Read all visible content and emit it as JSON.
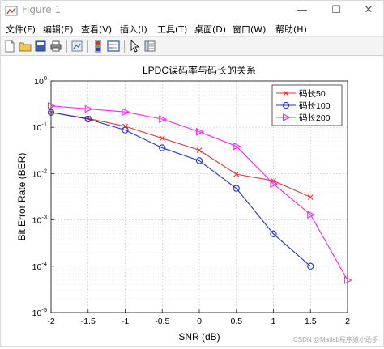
{
  "window": {
    "title": "Figure 1",
    "controls": {
      "minimize": "—",
      "maximize": "☐",
      "close": "✕"
    }
  },
  "menu": {
    "items": [
      {
        "label": "文件(F)"
      },
      {
        "label": "编辑(E)"
      },
      {
        "label": "查看(V)"
      },
      {
        "label": "插入(I)"
      },
      {
        "label": "工具(T)"
      },
      {
        "label": "桌面(D)"
      },
      {
        "label": "窗口(W)"
      },
      {
        "label": "帮助(H)"
      }
    ]
  },
  "toolbar": {
    "icons": [
      "new-file-icon",
      "open-folder-icon",
      "save-icon",
      "print-icon",
      "link-plot-icon",
      "colorbar-icon",
      "legend-icon",
      "edit-plot-icon",
      "property-inspector-icon"
    ]
  },
  "watermark": "CSDN @Matlab程序猿小助手",
  "colors": {
    "red": "#e03030",
    "blue": "#2236c8",
    "magenta": "#ff20ff"
  },
  "chart_data": {
    "type": "line",
    "title": "LPDC误码率与码长的关系",
    "xlabel": "SNR (dB)",
    "ylabel": "Bit Error Rate (BER)",
    "xlim": [
      -2,
      2
    ],
    "ylim": [
      1e-05,
      1
    ],
    "yscale": "log",
    "grid": true,
    "legend_position": "top-right",
    "x_ticks": [
      "-2",
      "-1.5",
      "-1",
      "-0.5",
      "0",
      "0.5",
      "1",
      "1.5",
      "2"
    ],
    "y_ticks": [
      "10^0",
      "10^-1",
      "10^-2",
      "10^-3",
      "10^-4",
      "10^-5"
    ],
    "series": [
      {
        "name": "码长50",
        "color": "#e03030",
        "marker": "x",
        "x": [
          -2,
          -1.5,
          -1,
          -0.5,
          0,
          0.5,
          1,
          1.5
        ],
        "values": [
          0.21,
          0.155,
          0.105,
          0.058,
          0.032,
          0.0097,
          0.007,
          0.0031
        ]
      },
      {
        "name": "码长100",
        "color": "#2236c8",
        "marker": "o",
        "x": [
          -2,
          -1.5,
          -1,
          -0.5,
          0,
          0.5,
          1,
          1.5
        ],
        "values": [
          0.21,
          0.15,
          0.087,
          0.036,
          0.019,
          0.0048,
          0.0005,
          0.0001
        ]
      },
      {
        "name": "码长200",
        "color": "#ff20ff",
        "marker": "triangle-right",
        "x": [
          -2,
          -1.5,
          -1,
          -0.5,
          0,
          0.5,
          1,
          1.5,
          2
        ],
        "values": [
          0.29,
          0.25,
          0.215,
          0.15,
          0.08,
          0.039,
          0.006,
          0.0013,
          5e-05
        ]
      }
    ]
  }
}
